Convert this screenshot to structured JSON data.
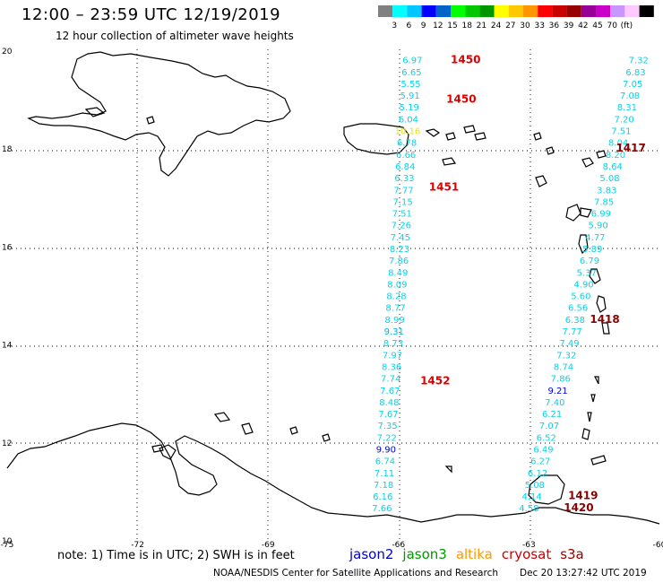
{
  "title": "12:00 – 23:59 UTC 12/19/2019",
  "subtitle": "12 hour collection of altimeter wave heights",
  "colorbar": {
    "colors": [
      "#808080",
      "#00ffff",
      "#00c8ff",
      "#0000ff",
      "#0064c8",
      "#00ff00",
      "#00c800",
      "#009600",
      "#ffff00",
      "#ffc800",
      "#ff9600",
      "#ff0000",
      "#c80000",
      "#960000",
      "#960096",
      "#c800c8",
      "#c896ff",
      "#ffc8ff",
      "#000000"
    ],
    "labels": [
      "3",
      "6",
      "9",
      "12",
      "15",
      "18",
      "21",
      "24",
      "27",
      "30",
      "33",
      "36",
      "39",
      "42",
      "45",
      "70",
      "(ft)"
    ]
  },
  "axes": {
    "lon_ticks": [
      "-75",
      "-72",
      "-69",
      "-66",
      "-63",
      "-60"
    ],
    "lat_ticks": [
      "20",
      "18",
      "16",
      "14",
      "12",
      "10"
    ],
    "lon_range": [
      -75,
      -60
    ],
    "lat_range": [
      10,
      20
    ]
  },
  "note": "note: 1) Time is in UTC; 2) SWH is in feet",
  "legend": [
    {
      "name": "jason2",
      "color": "#0000cc"
    },
    {
      "name": "jason3",
      "color": "#009900"
    },
    {
      "name": "altika",
      "color": "#ff9900"
    },
    {
      "name": "cryosat",
      "color": "#cc0000"
    },
    {
      "name": "s3a",
      "color": "#990000"
    }
  ],
  "credit": "NOAA/NESDIS Center for Satellite Applications and Research",
  "timestamp": "Dec 20 13:27:42 UTC 2019",
  "pass_labels": [
    {
      "text": "1450",
      "lon": -64.8,
      "lat": 19.75,
      "color": "#e00000"
    },
    {
      "text": "1450",
      "lon": -64.9,
      "lat": 18.95,
      "color": "#e00000"
    },
    {
      "text": "1451",
      "lon": -65.3,
      "lat": 17.15,
      "color": "#e00000"
    },
    {
      "text": "1452",
      "lon": -65.5,
      "lat": 13.2,
      "color": "#e00000"
    },
    {
      "text": "1417",
      "lon": -61.0,
      "lat": 17.95,
      "color": "#8b0000"
    },
    {
      "text": "1418",
      "lon": -61.6,
      "lat": 14.45,
      "color": "#8b0000"
    },
    {
      "text": "1419",
      "lon": -62.1,
      "lat": 10.85,
      "color": "#8b0000"
    },
    {
      "text": "1420",
      "lon": -62.2,
      "lat": 10.6,
      "color": "#8b0000"
    }
  ],
  "tracks": [
    {
      "name": "track-1450-1451-1452",
      "lon_start": -65.68,
      "lon_end": -66.38,
      "lat_start": 19.75,
      "lat_end": 10.6,
      "values": [
        "6.97",
        "6.65",
        "5.55",
        "5.91",
        "5.19",
        "6.04",
        "10.16",
        "6.78",
        "6.66",
        "6.84",
        "6.33",
        "7.77",
        "7.15",
        "7.51",
        "7.26",
        "7.45",
        "8.23",
        "7.86",
        "8.49",
        "8.09",
        "8.28",
        "8.77",
        "8.99",
        "9.31",
        "8.73",
        "7.97",
        "8.36",
        "7.74",
        "7.67",
        "8.48",
        "7.67",
        "7.35",
        "7.22",
        "9.90",
        "6.74",
        "7.11",
        "7.18",
        "6.16",
        "7.66"
      ],
      "colors": [
        "#0ad2e6",
        "#0ad2e6",
        "#0ad2e6",
        "#0ad2e6",
        "#0ad2e6",
        "#0ad2e6",
        "#e6e600",
        "#0ad2e6",
        "#0ad2e6",
        "#0ad2e6",
        "#0ad2e6",
        "#0ad2e6",
        "#0ad2e6",
        "#0ad2e6",
        "#0ad2e6",
        "#0ad2e6",
        "#0ad2e6",
        "#0ad2e6",
        "#0ad2e6",
        "#0ad2e6",
        "#0ad2e6",
        "#0ad2e6",
        "#0ad2e6",
        "#00b4e6",
        "#0ad2e6",
        "#0ad2e6",
        "#0ad2e6",
        "#0ad2e6",
        "#0ad2e6",
        "#0ad2e6",
        "#0ad2e6",
        "#0ad2e6",
        "#0ad2e6",
        "#0000dc",
        "#0ad2e6",
        "#0ad2e6",
        "#0ad2e6",
        "#0ad2e6",
        "#0ad2e6"
      ]
    },
    {
      "name": "track-1417-1418-1419",
      "lon_start": -60.48,
      "lon_end": -63.0,
      "lat_start": 19.75,
      "lat_end": 10.6,
      "values": [
        "7.32",
        "6.83",
        "7.05",
        "7.08",
        "8.31",
        "7.20",
        "7.51",
        "8.04",
        "8.20",
        "8.64",
        "5.08",
        "3.83",
        "7.85",
        "6.99",
        "5.90",
        "4.77",
        "5.89",
        "6.79",
        "5.37",
        "4.90",
        "5.60",
        "6.56",
        "6.38",
        "7.77",
        "7.49",
        "7.32",
        "8.74",
        "7.86",
        "9.21",
        "7.40",
        "6.21",
        "7.07",
        "6.52",
        "6.49",
        "6.27",
        "6.12",
        "5.08",
        "4.14",
        "4.58"
      ],
      "colors": [
        "#0ad2e6",
        "#0ad2e6",
        "#0ad2e6",
        "#0ad2e6",
        "#0ad2e6",
        "#0ad2e6",
        "#0ad2e6",
        "#0ad2e6",
        "#0ad2e6",
        "#0ad2e6",
        "#0ad2e6",
        "#0ad2e6",
        "#0ad2e6",
        "#0ad2e6",
        "#0ad2e6",
        "#0ad2e6",
        "#0ad2e6",
        "#0ad2e6",
        "#0ad2e6",
        "#0ad2e6",
        "#0ad2e6",
        "#0ad2e6",
        "#0ad2e6",
        "#0ad2e6",
        "#0ad2e6",
        "#0ad2e6",
        "#0ad2e6",
        "#0ad2e6",
        "#0000dc",
        "#0ad2e6",
        "#0ad2e6",
        "#0ad2e6",
        "#0ad2e6",
        "#0ad2e6",
        "#0ad2e6",
        "#0ad2e6",
        "#0ad2e6",
        "#0ad2e6",
        "#0ad2e6"
      ]
    }
  ]
}
